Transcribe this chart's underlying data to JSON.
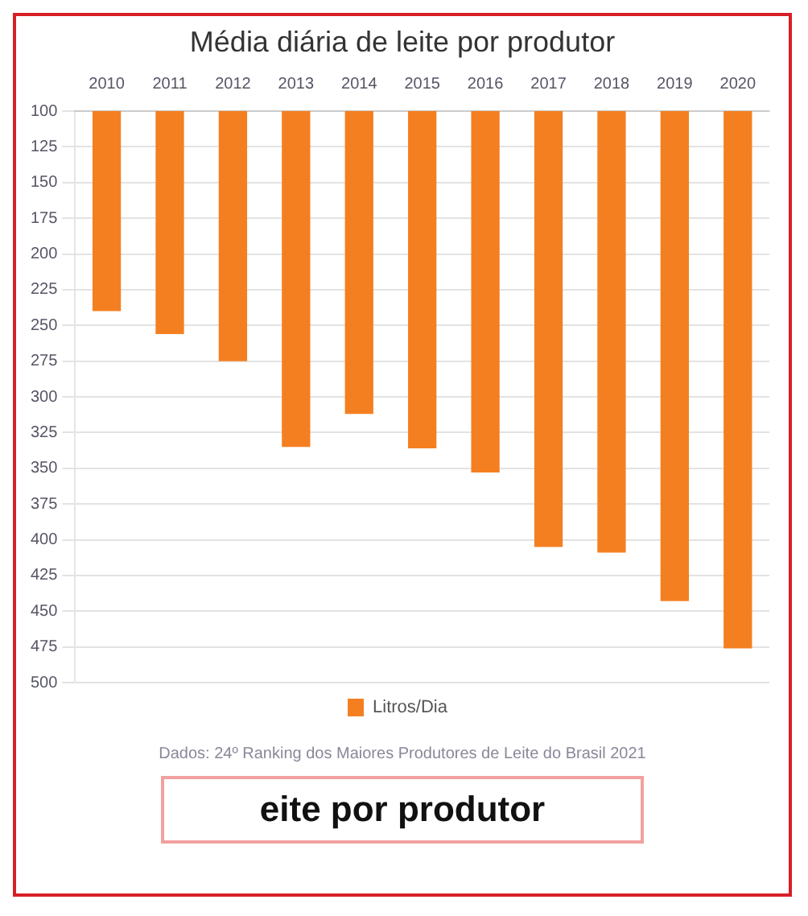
{
  "chart_data": {
    "type": "bar",
    "title": "Média diária de leite por produtor",
    "categories": [
      "2010",
      "2011",
      "2012",
      "2013",
      "2014",
      "2015",
      "2016",
      "2017",
      "2018",
      "2019",
      "2020"
    ],
    "series": [
      {
        "name": "Litros/Dia",
        "color": "#f47f20",
        "values": [
          240,
          256,
          275,
          335,
          312,
          336,
          353,
          405,
          409,
          443,
          476
        ]
      }
    ],
    "ylim": [
      500,
      100
    ],
    "yticks": [
      100,
      125,
      150,
      175,
      200,
      225,
      250,
      275,
      300,
      325,
      350,
      375,
      400,
      425,
      450,
      475,
      500
    ],
    "grid": "y",
    "legend": "bottom",
    "annotations": [
      "Dados: 24º Ranking dos Maiores Produtores de Leite do Brasil 2021",
      "eite por produtor"
    ]
  }
}
